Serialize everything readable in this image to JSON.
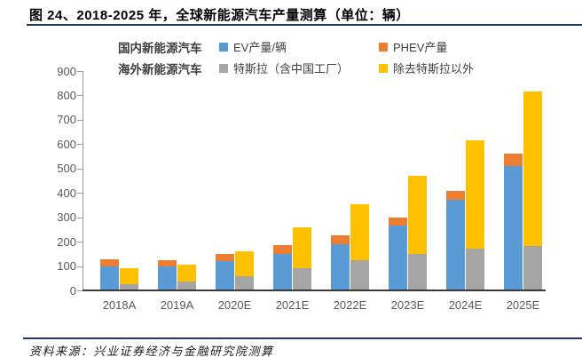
{
  "title": "图 24、2018-2025 年，全球新能源汽车产量测算（单位：辆）",
  "source": "资料来源：兴业证券经济与金融研究院测算",
  "legend": {
    "row1_label": "国内新能源汽车",
    "row2_label": "海外新能源汽车",
    "items": [
      {
        "label": "EV产量/辆",
        "color": "#5B9BD5"
      },
      {
        "label": "PHEV产量",
        "color": "#ED7D31"
      },
      {
        "label": "特斯拉（含中国工厂）",
        "color": "#A5A5A5"
      },
      {
        "label": "除去特斯拉以外",
        "color": "#FFC000"
      }
    ]
  },
  "colors": {
    "ev": "#5B9BD5",
    "phev": "#ED7D31",
    "tesla": "#A5A5A5",
    "ex_tesla": "#FFC000",
    "rule": "#1F3864",
    "axis_text": "#595959"
  },
  "chart_data": {
    "type": "bar",
    "subtype": "grouped-stacked",
    "title": "图 24、2018-2025 年，全球新能源汽车产量测算（单位：辆）",
    "xlabel": "",
    "ylabel": "",
    "categories": [
      "2018A",
      "2019A",
      "2020E",
      "2021E",
      "2022E",
      "2023E",
      "2024E",
      "2025E"
    ],
    "groups": [
      {
        "name": "国内新能源汽车",
        "stacks": [
          {
            "name": "EV产量/辆",
            "color": "#5B9BD5",
            "values": [
              99,
              98,
              120,
              148,
              190,
              265,
              372,
              510
            ]
          },
          {
            "name": "PHEV产量",
            "color": "#ED7D31",
            "values": [
              28,
              26,
              31,
              37,
              35,
              35,
              38,
              50
            ]
          }
        ]
      },
      {
        "name": "海外新能源汽车",
        "stacks": [
          {
            "name": "特斯拉（含中国工厂）",
            "color": "#A5A5A5",
            "values": [
              25,
              36,
              60,
              93,
              125,
              150,
              173,
              183
            ]
          },
          {
            "name": "除去特斯拉以外",
            "color": "#FFC000",
            "values": [
              65,
              71,
              100,
              167,
              227,
              320,
              442,
              632
            ]
          }
        ]
      }
    ],
    "stack_totals": {
      "国内新能源汽车": [
        127,
        124,
        151,
        185,
        225,
        300,
        410,
        560
      ],
      "海外新能源汽车": [
        90,
        107,
        160,
        260,
        352,
        470,
        615,
        815
      ]
    },
    "ylim": [
      0,
      900
    ],
    "ytick_step": 100,
    "grid": false,
    "legend_position": "top"
  }
}
